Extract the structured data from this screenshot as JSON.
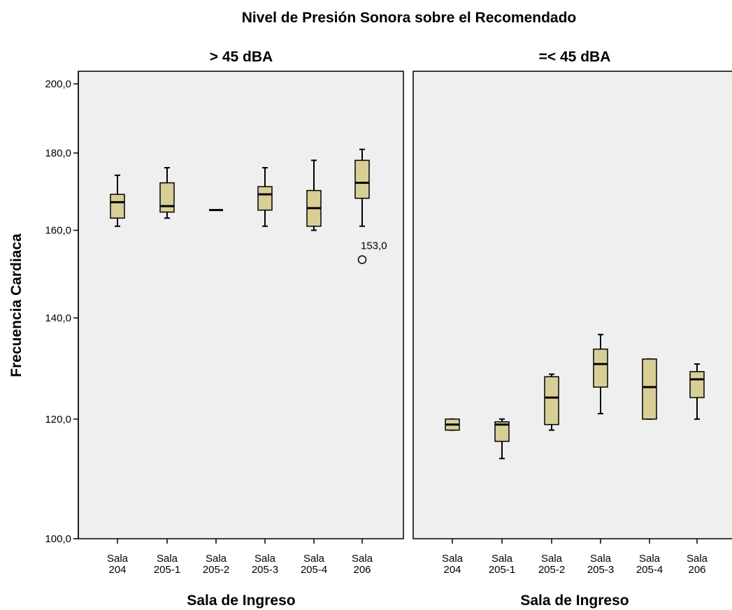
{
  "chart_data": {
    "type": "boxplot",
    "title": "Nivel de Presión Sonora sobre el Recomendado",
    "ylabel": "Frecuencia Cardiaca",
    "xlabel": "Sala de Ingreso",
    "yticks": [
      "100,0",
      "120,0",
      "140,0",
      "160,0",
      "180,0",
      "200,0"
    ],
    "ylim": [
      100,
      200
    ],
    "y_scale": "log",
    "grid": false,
    "box_color": "#d8cf97",
    "panel_background": "#efefef",
    "panels": [
      {
        "title": "> 45 dBA",
        "categories": [
          {
            "line1": "Sala",
            "line2": "204"
          },
          {
            "line1": "Sala",
            "line2": "205-1"
          },
          {
            "line1": "Sala",
            "line2": "205-2"
          },
          {
            "line1": "Sala",
            "line2": "205-3"
          },
          {
            "line1": "Sala",
            "line2": "205-4"
          },
          {
            "line1": "Sala",
            "line2": "206"
          }
        ],
        "boxes": [
          {
            "min": 161,
            "q1": 163,
            "median": 167,
            "q3": 169,
            "max": 174
          },
          {
            "min": 163,
            "q1": 164.5,
            "median": 166,
            "q3": 172,
            "max": 176
          },
          {
            "min": 165,
            "q1": 165,
            "median": 165,
            "q3": 165,
            "max": 165
          },
          {
            "min": 161,
            "q1": 165,
            "median": 169,
            "q3": 171,
            "max": 176
          },
          {
            "min": 160,
            "q1": 161,
            "median": 165.5,
            "q3": 170,
            "max": 178
          },
          {
            "min": 161,
            "q1": 168,
            "median": 172,
            "q3": 178,
            "max": 181
          }
        ],
        "outliers": [
          {
            "category": 5,
            "value": 153,
            "label": "153,0"
          }
        ]
      },
      {
        "title": "=< 45 dBA",
        "categories": [
          {
            "line1": "Sala",
            "line2": "204"
          },
          {
            "line1": "Sala",
            "line2": "205-1"
          },
          {
            "line1": "Sala",
            "line2": "205-2"
          },
          {
            "line1": "Sala",
            "line2": "205-3"
          },
          {
            "line1": "Sala",
            "line2": "205-4"
          },
          {
            "line1": "Sala",
            "line2": "206"
          }
        ],
        "boxes": [
          {
            "min": 118,
            "q1": 118,
            "median": 119,
            "q3": 120,
            "max": 120
          },
          {
            "min": 113,
            "q1": 116,
            "median": 119,
            "q3": 119.5,
            "max": 120
          },
          {
            "min": 118,
            "q1": 119,
            "median": 124,
            "q3": 128,
            "max": 128.5
          },
          {
            "min": 121,
            "q1": 126,
            "median": 130.5,
            "q3": 133.5,
            "max": 136.5
          },
          {
            "min": 120,
            "q1": 120,
            "median": 126,
            "q3": 131.5,
            "max": 131.5
          },
          {
            "min": 120,
            "q1": 124,
            "median": 127.5,
            "q3": 129,
            "max": 130.5
          }
        ],
        "outliers": []
      }
    ]
  }
}
